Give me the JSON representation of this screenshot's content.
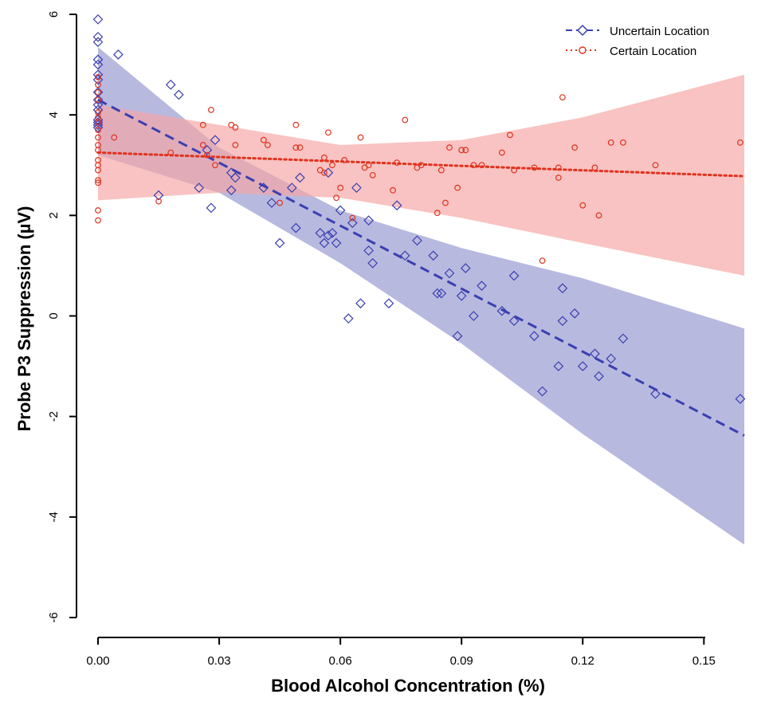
{
  "chart_data": {
    "type": "scatter",
    "xlabel": "Blood Alcohol Concentration (%)",
    "ylabel": "Probe P3 Suppression (µV)",
    "xlim": [
      0.0,
      0.16
    ],
    "ylim": [
      -6,
      6
    ],
    "x_ticks": [
      "0.00",
      "0.03",
      "0.06",
      "0.09",
      "0.12",
      "0.15"
    ],
    "y_ticks": [
      "6",
      "4",
      "2",
      "0",
      "-2",
      "-4",
      "-6"
    ],
    "legend_position": "top-right",
    "series": [
      {
        "name": "Uncertain Location",
        "color": "#3a3fb0",
        "band_color": "#8c8ecb",
        "marker": "diamond",
        "line_style": "dashed",
        "fit": {
          "x": [
            0.0,
            0.16
          ],
          "y": [
            4.3,
            -2.38
          ]
        },
        "band": {
          "x": [
            0.0,
            0.03,
            0.06,
            0.09,
            0.12,
            0.16
          ],
          "upper": [
            5.35,
            3.35,
            2.1,
            1.35,
            0.75,
            -0.25
          ],
          "lower": [
            3.2,
            2.45,
            1.05,
            -0.55,
            -2.35,
            -4.55
          ]
        },
        "points": [
          [
            0,
            5.9
          ],
          [
            0,
            5.55
          ],
          [
            0,
            5.45
          ],
          [
            0,
            5.1
          ],
          [
            0,
            5.0
          ],
          [
            0,
            4.8
          ],
          [
            0,
            4.7
          ],
          [
            0,
            4.45
          ],
          [
            0,
            4.3
          ],
          [
            0,
            4.2
          ],
          [
            0,
            4.1
          ],
          [
            0,
            3.9
          ],
          [
            0,
            3.85
          ],
          [
            0,
            3.8
          ],
          [
            0,
            3.75
          ],
          [
            0.005,
            5.2
          ],
          [
            0.015,
            2.4
          ],
          [
            0.018,
            4.6
          ],
          [
            0.02,
            4.4
          ],
          [
            0.025,
            2.55
          ],
          [
            0.027,
            3.3
          ],
          [
            0.028,
            2.15
          ],
          [
            0.029,
            3.5
          ],
          [
            0.033,
            2.85
          ],
          [
            0.033,
            2.5
          ],
          [
            0.034,
            2.75
          ],
          [
            0.041,
            2.55
          ],
          [
            0.043,
            2.25
          ],
          [
            0.045,
            1.45
          ],
          [
            0.048,
            2.55
          ],
          [
            0.049,
            1.75
          ],
          [
            0.05,
            2.75
          ],
          [
            0.055,
            1.65
          ],
          [
            0.056,
            1.45
          ],
          [
            0.057,
            2.85
          ],
          [
            0.057,
            1.6
          ],
          [
            0.058,
            1.65
          ],
          [
            0.059,
            1.45
          ],
          [
            0.06,
            2.1
          ],
          [
            0.062,
            -0.05
          ],
          [
            0.063,
            1.85
          ],
          [
            0.064,
            2.55
          ],
          [
            0.065,
            0.25
          ],
          [
            0.067,
            1.9
          ],
          [
            0.067,
            1.3
          ],
          [
            0.068,
            1.05
          ],
          [
            0.072,
            0.25
          ],
          [
            0.074,
            2.2
          ],
          [
            0.076,
            1.2
          ],
          [
            0.079,
            1.5
          ],
          [
            0.083,
            1.2
          ],
          [
            0.084,
            0.45
          ],
          [
            0.085,
            0.45
          ],
          [
            0.087,
            0.85
          ],
          [
            0.089,
            -0.4
          ],
          [
            0.09,
            0.4
          ],
          [
            0.091,
            0.95
          ],
          [
            0.093,
            0.0
          ],
          [
            0.095,
            0.6
          ],
          [
            0.1,
            0.1
          ],
          [
            0.103,
            0.8
          ],
          [
            0.103,
            -0.1
          ],
          [
            0.108,
            -0.4
          ],
          [
            0.11,
            -1.5
          ],
          [
            0.114,
            -1.0
          ],
          [
            0.115,
            -0.1
          ],
          [
            0.115,
            0.55
          ],
          [
            0.118,
            0.05
          ],
          [
            0.12,
            -1.0
          ],
          [
            0.123,
            -0.75
          ],
          [
            0.124,
            -1.2
          ],
          [
            0.127,
            -0.85
          ],
          [
            0.13,
            -0.45
          ],
          [
            0.138,
            -1.55
          ],
          [
            0.159,
            -1.65
          ]
        ]
      },
      {
        "name": "Certain Location",
        "color": "#e0321e",
        "band_color": "#f4a7a5",
        "marker": "circle",
        "line_style": "dotted",
        "fit": {
          "x": [
            0.0,
            0.16
          ],
          "y": [
            3.25,
            2.78
          ]
        },
        "band": {
          "x": [
            0.0,
            0.03,
            0.06,
            0.09,
            0.12,
            0.16
          ],
          "upper": [
            4.2,
            3.8,
            3.4,
            3.5,
            3.95,
            4.8
          ],
          "lower": [
            2.3,
            2.45,
            2.35,
            1.95,
            1.45,
            0.8
          ]
        },
        "points": [
          [
            0,
            4.75
          ],
          [
            0,
            4.6
          ],
          [
            0,
            4.45
          ],
          [
            0,
            4.3
          ],
          [
            0,
            4.05
          ],
          [
            0,
            3.95
          ],
          [
            0,
            3.85
          ],
          [
            0,
            3.7
          ],
          [
            0,
            3.55
          ],
          [
            0,
            3.4
          ],
          [
            0,
            3.3
          ],
          [
            0,
            3.1
          ],
          [
            0,
            3.0
          ],
          [
            0,
            2.9
          ],
          [
            0,
            2.7
          ],
          [
            0,
            2.65
          ],
          [
            0,
            2.1
          ],
          [
            0,
            1.9
          ],
          [
            0.004,
            3.55
          ],
          [
            0.015,
            2.28
          ],
          [
            0.018,
            3.25
          ],
          [
            0.026,
            3.4
          ],
          [
            0.026,
            3.8
          ],
          [
            0.027,
            3.2
          ],
          [
            0.028,
            4.1
          ],
          [
            0.029,
            3.0
          ],
          [
            0.033,
            3.8
          ],
          [
            0.034,
            3.75
          ],
          [
            0.034,
            3.4
          ],
          [
            0.041,
            3.5
          ],
          [
            0.042,
            3.4
          ],
          [
            0.045,
            2.25
          ],
          [
            0.049,
            3.35
          ],
          [
            0.049,
            3.8
          ],
          [
            0.05,
            3.35
          ],
          [
            0.055,
            2.9
          ],
          [
            0.056,
            2.85
          ],
          [
            0.056,
            3.15
          ],
          [
            0.057,
            3.65
          ],
          [
            0.058,
            3.0
          ],
          [
            0.059,
            2.35
          ],
          [
            0.06,
            2.55
          ],
          [
            0.061,
            3.1
          ],
          [
            0.063,
            1.95
          ],
          [
            0.065,
            3.55
          ],
          [
            0.066,
            2.95
          ],
          [
            0.067,
            3.0
          ],
          [
            0.068,
            2.8
          ],
          [
            0.073,
            2.5
          ],
          [
            0.074,
            3.05
          ],
          [
            0.076,
            3.9
          ],
          [
            0.079,
            2.95
          ],
          [
            0.08,
            3.0
          ],
          [
            0.084,
            2.05
          ],
          [
            0.085,
            2.9
          ],
          [
            0.086,
            2.25
          ],
          [
            0.087,
            3.35
          ],
          [
            0.089,
            2.55
          ],
          [
            0.09,
            3.3
          ],
          [
            0.091,
            3.3
          ],
          [
            0.093,
            3.0
          ],
          [
            0.095,
            3.0
          ],
          [
            0.1,
            3.25
          ],
          [
            0.102,
            3.6
          ],
          [
            0.103,
            2.9
          ],
          [
            0.108,
            2.95
          ],
          [
            0.11,
            1.1
          ],
          [
            0.114,
            2.75
          ],
          [
            0.114,
            2.95
          ],
          [
            0.115,
            4.35
          ],
          [
            0.118,
            3.35
          ],
          [
            0.12,
            2.2
          ],
          [
            0.123,
            2.95
          ],
          [
            0.124,
            2.0
          ],
          [
            0.127,
            3.45
          ],
          [
            0.13,
            3.45
          ],
          [
            0.138,
            3.0
          ],
          [
            0.159,
            3.45
          ]
        ]
      }
    ]
  }
}
